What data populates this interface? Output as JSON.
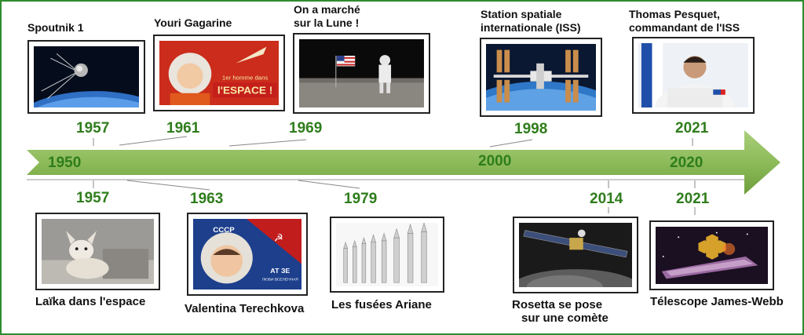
{
  "axis": {
    "ticks": [
      "1950",
      "2000",
      "2020"
    ],
    "color": "#8dbb5a"
  },
  "events_top": [
    {
      "label": "Spoutnik 1",
      "year": "1957",
      "image": "sputnik-satellite-over-earth"
    },
    {
      "label": "Youri Gagarine",
      "year": "1961",
      "image": "gagarin-poster",
      "poster_text": [
        "1er homme dans",
        "l'ESPACE !"
      ]
    },
    {
      "label_lines": [
        "On a marché",
        "sur la Lune !"
      ],
      "year": "1969",
      "image": "astronaut-flag-moon"
    },
    {
      "label_lines": [
        "Station spatiale",
        "internationale (ISS)"
      ],
      "year": "1998",
      "image": "iss-over-earth"
    },
    {
      "label_lines": [
        "Thomas Pesquet,",
        "commandant de l'ISS"
      ],
      "year": "2021",
      "image": "pesquet-portrait"
    }
  ],
  "events_bottom": [
    {
      "label": "Laïka dans l'espace",
      "year": "1957",
      "image": "laika-dog"
    },
    {
      "label": "Valentina Terechkova",
      "year": "1963",
      "image": "tereshkova-poster",
      "poster_text": [
        "CCCP",
        "АТ ЗЕ",
        "ЛЮБИ ВСЕЛЕННАЯ"
      ]
    },
    {
      "label": "Les fusées Ariane",
      "year": "1979",
      "image": "ariane-rockets"
    },
    {
      "label_lines": [
        "Rosetta se pose",
        "sur une comète"
      ],
      "year": "2014",
      "image": "rosetta-probe"
    },
    {
      "label": "Télescope James-Webb",
      "year": "2021",
      "image": "james-webb-telescope"
    }
  ]
}
